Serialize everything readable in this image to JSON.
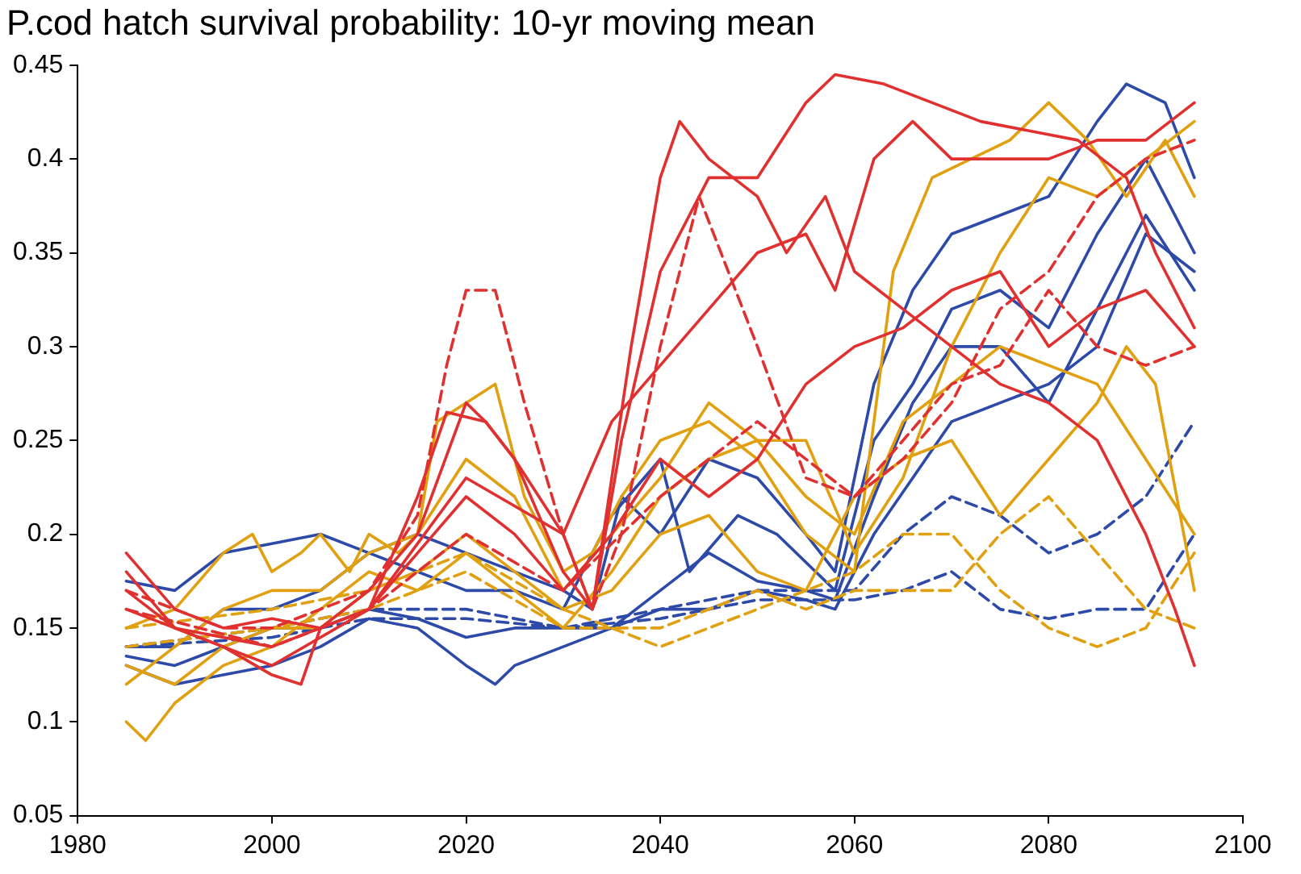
{
  "chart_data": {
    "type": "line",
    "title": "P.cod hatch survival probability: 10-yr moving mean",
    "xlim": [
      1980,
      2100
    ],
    "xticks": [
      1980,
      2000,
      2020,
      2040,
      2060,
      2080,
      2100
    ],
    "ylim": [
      0.05,
      0.45
    ],
    "yticks": [
      0.05,
      0.1,
      0.15,
      0.2,
      0.25,
      0.3,
      0.35,
      0.4,
      0.45
    ],
    "grid": false,
    "legend": false,
    "marker": "none",
    "series": [
      {
        "color": "#e03030",
        "line_style": "solid",
        "x": [
          1985,
          1990,
          1995,
          2000,
          2003,
          2005,
          2010,
          2015,
          2018,
          2022,
          2025,
          2030,
          2033,
          2036,
          2040,
          2045,
          2050,
          2055,
          2058,
          2063,
          2068,
          2073,
          2078,
          2083,
          2088,
          2091,
          2095
        ],
        "values": [
          0.18,
          0.15,
          0.14,
          0.125,
          0.12,
          0.15,
          0.16,
          0.22,
          0.265,
          0.26,
          0.24,
          0.18,
          0.16,
          0.25,
          0.34,
          0.39,
          0.39,
          0.43,
          0.445,
          0.44,
          0.43,
          0.42,
          0.415,
          0.41,
          0.39,
          0.35,
          0.31
        ]
      },
      {
        "color": "#e03030",
        "line_style": "solid",
        "x": [
          1985,
          1990,
          1995,
          2000,
          2005,
          2010,
          2015,
          2020,
          2022,
          2025,
          2030,
          2033,
          2037,
          2040,
          2042,
          2045,
          2050,
          2053,
          2057,
          2060,
          2065,
          2070,
          2075,
          2080,
          2085,
          2090,
          2093,
          2095
        ],
        "values": [
          0.19,
          0.16,
          0.15,
          0.155,
          0.15,
          0.17,
          0.2,
          0.27,
          0.26,
          0.24,
          0.2,
          0.16,
          0.3,
          0.39,
          0.42,
          0.4,
          0.38,
          0.35,
          0.38,
          0.34,
          0.32,
          0.3,
          0.28,
          0.27,
          0.25,
          0.2,
          0.16,
          0.13
        ]
      },
      {
        "color": "#e03030",
        "line_style": "solid",
        "x": [
          1985,
          1990,
          2000,
          2010,
          2020,
          2030,
          2035,
          2040,
          2045,
          2050,
          2055,
          2058,
          2062,
          2066,
          2070,
          2075,
          2080,
          2085,
          2090,
          2095
        ],
        "values": [
          0.16,
          0.15,
          0.14,
          0.16,
          0.23,
          0.2,
          0.26,
          0.29,
          0.32,
          0.35,
          0.36,
          0.33,
          0.4,
          0.42,
          0.4,
          0.4,
          0.4,
          0.41,
          0.41,
          0.43
        ]
      },
      {
        "color": "#e03030",
        "line_style": "dashed",
        "x": [
          1985,
          1990,
          1995,
          2000,
          2005,
          2010,
          2015,
          2018,
          2020,
          2023,
          2026,
          2030,
          2033,
          2036,
          2040,
          2044,
          2047,
          2050,
          2055,
          2060,
          2065,
          2070,
          2075,
          2080,
          2085,
          2090,
          2095
        ],
        "values": [
          0.17,
          0.16,
          0.15,
          0.15,
          0.16,
          0.17,
          0.21,
          0.29,
          0.33,
          0.33,
          0.27,
          0.2,
          0.16,
          0.2,
          0.3,
          0.38,
          0.34,
          0.3,
          0.23,
          0.22,
          0.24,
          0.27,
          0.32,
          0.34,
          0.38,
          0.4,
          0.41
        ]
      },
      {
        "color": "#e03030",
        "line_style": "solid",
        "x": [
          1985,
          1990,
          2000,
          2010,
          2015,
          2020,
          2025,
          2030,
          2035,
          2040,
          2045,
          2050,
          2055,
          2060,
          2065,
          2070,
          2075,
          2080,
          2085,
          2090,
          2095
        ],
        "values": [
          0.17,
          0.15,
          0.13,
          0.16,
          0.19,
          0.22,
          0.2,
          0.17,
          0.2,
          0.24,
          0.22,
          0.24,
          0.28,
          0.3,
          0.31,
          0.33,
          0.34,
          0.3,
          0.32,
          0.33,
          0.3
        ]
      },
      {
        "color": "#e03030",
        "line_style": "dashed",
        "x": [
          1985,
          2000,
          2010,
          2020,
          2030,
          2040,
          2050,
          2060,
          2065,
          2070,
          2075,
          2080,
          2085,
          2090,
          2095
        ],
        "values": [
          0.16,
          0.14,
          0.16,
          0.2,
          0.17,
          0.22,
          0.26,
          0.22,
          0.25,
          0.28,
          0.29,
          0.33,
          0.3,
          0.29,
          0.3
        ]
      },
      {
        "color": "#e0a010",
        "line_style": "solid",
        "x": [
          1985,
          1990,
          1995,
          1998,
          2000,
          2003,
          2005,
          2008,
          2010,
          2013,
          2015,
          2017,
          2020,
          2023,
          2026,
          2030,
          2033,
          2036,
          2040,
          2045,
          2050,
          2055,
          2060,
          2064,
          2068,
          2072,
          2076,
          2080,
          2084,
          2088,
          2092,
          2095
        ],
        "values": [
          0.15,
          0.16,
          0.19,
          0.2,
          0.18,
          0.19,
          0.2,
          0.18,
          0.2,
          0.19,
          0.2,
          0.26,
          0.27,
          0.28,
          0.22,
          0.18,
          0.19,
          0.22,
          0.25,
          0.26,
          0.24,
          0.2,
          0.18,
          0.34,
          0.39,
          0.4,
          0.41,
          0.43,
          0.41,
          0.38,
          0.41,
          0.38
        ]
      },
      {
        "color": "#e0a010",
        "line_style": "solid",
        "x": [
          1985,
          1990,
          1995,
          2000,
          2005,
          2010,
          2015,
          2020,
          2025,
          2030,
          2035,
          2040,
          2045,
          2050,
          2055,
          2060,
          2065,
          2070,
          2075,
          2080,
          2085,
          2090,
          2095
        ],
        "values": [
          0.12,
          0.14,
          0.16,
          0.17,
          0.17,
          0.19,
          0.2,
          0.24,
          0.22,
          0.17,
          0.2,
          0.23,
          0.27,
          0.25,
          0.22,
          0.2,
          0.26,
          0.28,
          0.3,
          0.29,
          0.28,
          0.24,
          0.2
        ]
      },
      {
        "color": "#e0a010",
        "line_style": "solid",
        "x": [
          1985,
          1987,
          1990,
          1995,
          2000,
          2005,
          2010,
          2015,
          2020,
          2025,
          2030,
          2035,
          2040,
          2045,
          2050,
          2055,
          2060,
          2065,
          2070,
          2075,
          2080,
          2085,
          2090,
          2095
        ],
        "values": [
          0.1,
          0.09,
          0.11,
          0.13,
          0.14,
          0.16,
          0.18,
          0.17,
          0.19,
          0.17,
          0.15,
          0.18,
          0.22,
          0.24,
          0.25,
          0.25,
          0.19,
          0.23,
          0.3,
          0.35,
          0.39,
          0.38,
          0.4,
          0.42
        ]
      },
      {
        "color": "#e0a010",
        "line_style": "solid",
        "x": [
          1985,
          1990,
          1995,
          2000,
          2005,
          2010,
          2015,
          2020,
          2025,
          2030,
          2035,
          2040,
          2045,
          2050,
          2055,
          2060,
          2065,
          2070,
          2075,
          2080,
          2085,
          2088,
          2091,
          2095
        ],
        "values": [
          0.13,
          0.12,
          0.14,
          0.15,
          0.15,
          0.17,
          0.18,
          0.2,
          0.18,
          0.16,
          0.17,
          0.2,
          0.21,
          0.18,
          0.17,
          0.22,
          0.24,
          0.25,
          0.21,
          0.24,
          0.27,
          0.3,
          0.28,
          0.17
        ]
      },
      {
        "color": "#e0a010",
        "line_style": "dashed",
        "x": [
          1985,
          2000,
          2010,
          2020,
          2030,
          2040,
          2050,
          2055,
          2060,
          2070,
          2075,
          2080,
          2085,
          2090,
          2095
        ],
        "values": [
          0.14,
          0.15,
          0.16,
          0.18,
          0.15,
          0.15,
          0.17,
          0.16,
          0.17,
          0.17,
          0.2,
          0.22,
          0.19,
          0.16,
          0.15
        ]
      },
      {
        "color": "#e0a010",
        "line_style": "dashed",
        "x": [
          1985,
          2000,
          2010,
          2020,
          2030,
          2040,
          2050,
          2060,
          2065,
          2070,
          2075,
          2080,
          2085,
          2090,
          2095
        ],
        "values": [
          0.15,
          0.16,
          0.17,
          0.19,
          0.16,
          0.14,
          0.16,
          0.18,
          0.2,
          0.2,
          0.17,
          0.15,
          0.14,
          0.15,
          0.19
        ]
      },
      {
        "color": "#2e4aa8",
        "line_style": "solid",
        "x": [
          1985,
          1990,
          1995,
          2000,
          2005,
          2010,
          2015,
          2020,
          2025,
          2030,
          2033,
          2036,
          2040,
          2045,
          2050,
          2055,
          2058,
          2062,
          2066,
          2070,
          2075,
          2080,
          2085,
          2088,
          2092,
          2095
        ],
        "values": [
          0.175,
          0.17,
          0.19,
          0.195,
          0.2,
          0.19,
          0.2,
          0.19,
          0.18,
          0.17,
          0.16,
          0.22,
          0.2,
          0.24,
          0.23,
          0.2,
          0.18,
          0.28,
          0.33,
          0.36,
          0.37,
          0.38,
          0.42,
          0.44,
          0.43,
          0.39
        ]
      },
      {
        "color": "#2e4aa8",
        "line_style": "solid",
        "x": [
          1985,
          1990,
          1995,
          2000,
          2005,
          2010,
          2015,
          2020,
          2025,
          2030,
          2035,
          2040,
          2043,
          2048,
          2052,
          2058,
          2062,
          2066,
          2070,
          2075,
          2080,
          2085,
          2090,
          2095
        ],
        "values": [
          0.14,
          0.14,
          0.16,
          0.16,
          0.17,
          0.19,
          0.18,
          0.17,
          0.17,
          0.16,
          0.21,
          0.24,
          0.18,
          0.21,
          0.2,
          0.17,
          0.25,
          0.28,
          0.32,
          0.33,
          0.31,
          0.36,
          0.4,
          0.35
        ]
      },
      {
        "color": "#2e4aa8",
        "line_style": "solid",
        "x": [
          1985,
          1990,
          1995,
          2000,
          2005,
          2010,
          2015,
          2020,
          2023,
          2025,
          2030,
          2035,
          2040,
          2045,
          2050,
          2055,
          2058,
          2062,
          2066,
          2070,
          2075,
          2080,
          2085,
          2090,
          2095
        ],
        "values": [
          0.13,
          0.12,
          0.125,
          0.13,
          0.14,
          0.155,
          0.15,
          0.13,
          0.12,
          0.13,
          0.14,
          0.15,
          0.17,
          0.19,
          0.175,
          0.17,
          0.165,
          0.22,
          0.27,
          0.3,
          0.3,
          0.27,
          0.32,
          0.37,
          0.33
        ]
      },
      {
        "color": "#2e4aa8",
        "line_style": "solid",
        "x": [
          1985,
          1990,
          1995,
          2000,
          2005,
          2010,
          2015,
          2020,
          2025,
          2030,
          2035,
          2040,
          2045,
          2050,
          2055,
          2058,
          2062,
          2066,
          2070,
          2075,
          2080,
          2085,
          2090,
          2095
        ],
        "values": [
          0.135,
          0.13,
          0.14,
          0.15,
          0.15,
          0.16,
          0.155,
          0.145,
          0.15,
          0.15,
          0.15,
          0.16,
          0.16,
          0.17,
          0.165,
          0.16,
          0.2,
          0.23,
          0.26,
          0.27,
          0.28,
          0.3,
          0.36,
          0.34
        ]
      },
      {
        "color": "#2e4aa8",
        "line_style": "dashed",
        "x": [
          1985,
          2000,
          2010,
          2020,
          2030,
          2040,
          2050,
          2060,
          2065,
          2070,
          2075,
          2080,
          2085,
          2090,
          2095
        ],
        "values": [
          0.14,
          0.15,
          0.16,
          0.16,
          0.15,
          0.16,
          0.17,
          0.17,
          0.2,
          0.22,
          0.21,
          0.19,
          0.2,
          0.22,
          0.26
        ]
      },
      {
        "color": "#2e4aa8",
        "line_style": "dashed",
        "x": [
          1985,
          2000,
          2010,
          2020,
          2030,
          2040,
          2050,
          2060,
          2065,
          2070,
          2075,
          2080,
          2085,
          2090,
          2095
        ],
        "values": [
          0.14,
          0.145,
          0.155,
          0.155,
          0.15,
          0.155,
          0.165,
          0.165,
          0.17,
          0.18,
          0.16,
          0.155,
          0.16,
          0.16,
          0.2
        ]
      }
    ]
  }
}
